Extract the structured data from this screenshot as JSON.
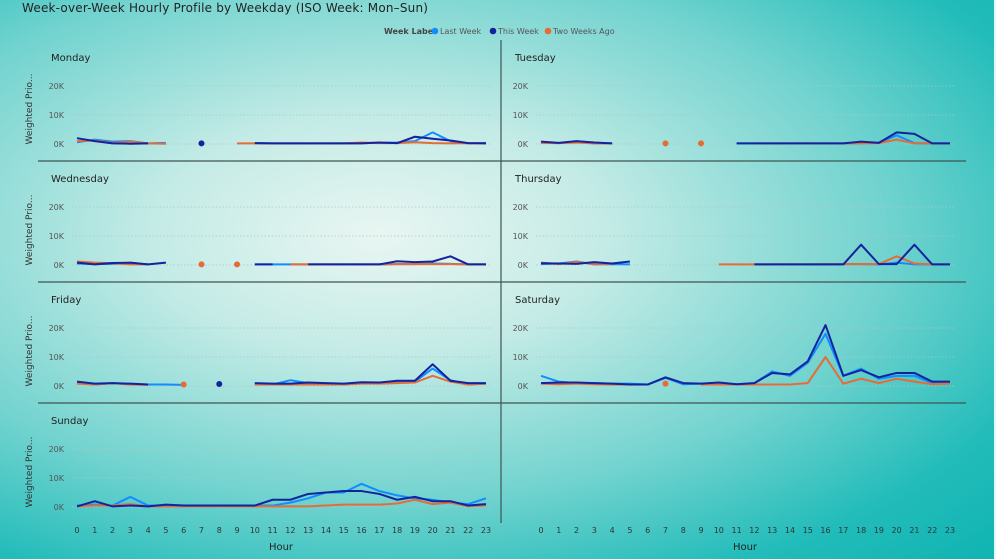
{
  "window": {
    "title": "Week-over-Week Hourly Profile by Weekday (ISO Week: Mon–Sun)"
  },
  "chart_data": {
    "type": "line",
    "title": "Week-over-Week Hourly Profile by Weekday (ISO Week: Mon–Sun)",
    "xlabel": "Hour",
    "ylabel": "Weighted Prio...",
    "ylim": [
      0,
      25000
    ],
    "y_ticks": [
      0,
      10000,
      20000
    ],
    "y_tick_labels": [
      "0K",
      "10K",
      "20K"
    ],
    "x_ticks": [
      0,
      1,
      2,
      3,
      4,
      5,
      6,
      7,
      8,
      9,
      10,
      11,
      12,
      13,
      14,
      15,
      16,
      17,
      18,
      19,
      20,
      21,
      22,
      23
    ],
    "x_tick_labels": [
      "0",
      "1",
      "2",
      "3",
      "4",
      "5",
      "6",
      "7",
      "8",
      "9",
      "10",
      "11",
      "12",
      "13",
      "14",
      "15",
      "16",
      "17",
      "18",
      "19",
      "20",
      "21",
      "22",
      "23"
    ],
    "legend": {
      "title": "Week Label",
      "position": "top-center",
      "entries": [
        {
          "name": "Last Week",
          "color": "#118dff"
        },
        {
          "name": "This Week",
          "color": "#12239e"
        },
        {
          "name": "Two Weeks Ago",
          "color": "#e66c37"
        }
      ]
    },
    "grid": true,
    "panels": [
      {
        "label": "Monday",
        "series": {
          "Last Week": [
            600,
            1500,
            800,
            1000,
            200,
            400,
            null,
            null,
            null,
            null,
            300,
            200,
            200,
            200,
            200,
            200,
            300,
            400,
            500,
            1000,
            4000,
            1000,
            200,
            400
          ],
          "This Week": [
            2000,
            1000,
            200,
            100,
            200,
            null,
            null,
            200,
            null,
            null,
            300,
            200,
            200,
            200,
            200,
            200,
            200,
            500,
            300,
            2500,
            1800,
            1200,
            300,
            200
          ],
          "Two Weeks Ago": [
            1000,
            1200,
            400,
            800,
            200,
            100,
            null,
            null,
            null,
            200,
            200,
            200,
            200,
            200,
            200,
            200,
            500,
            300,
            300,
            600,
            300,
            200,
            300,
            200
          ]
        }
      },
      {
        "label": "Tuesday",
        "series": {
          "Last Week": [
            500,
            300,
            800,
            200,
            200,
            null,
            null,
            null,
            null,
            null,
            null,
            200,
            200,
            200,
            200,
            200,
            200,
            200,
            300,
            500,
            3000,
            300,
            200,
            200
          ],
          "This Week": [
            800,
            400,
            1000,
            500,
            200,
            null,
            null,
            null,
            null,
            null,
            null,
            200,
            200,
            200,
            200,
            200,
            200,
            200,
            800,
            400,
            4000,
            3500,
            200,
            200
          ],
          "Two Weeks Ago": [
            400,
            300,
            500,
            200,
            200,
            null,
            null,
            200,
            null,
            200,
            null,
            null,
            200,
            200,
            200,
            200,
            200,
            200,
            200,
            300,
            1500,
            200,
            200,
            200
          ]
        }
      },
      {
        "label": "Wednesday",
        "series": {
          "Last Week": [
            500,
            300,
            400,
            600,
            200,
            null,
            null,
            null,
            null,
            null,
            200,
            200,
            200,
            200,
            200,
            200,
            200,
            200,
            300,
            300,
            500,
            400,
            200,
            200
          ],
          "This Week": [
            800,
            200,
            700,
            800,
            200,
            800,
            null,
            null,
            null,
            null,
            200,
            200,
            null,
            200,
            200,
            200,
            200,
            200,
            1300,
            1000,
            1200,
            3000,
            200,
            200
          ],
          "Two Weeks Ago": [
            1200,
            800,
            600,
            200,
            200,
            null,
            null,
            200,
            null,
            200,
            null,
            null,
            200,
            200,
            200,
            200,
            200,
            200,
            300,
            300,
            300,
            300,
            200,
            200
          ]
        }
      },
      {
        "label": "Thursday",
        "series": {
          "Last Week": [
            300,
            500,
            1200,
            200,
            300,
            200,
            null,
            null,
            null,
            null,
            null,
            null,
            200,
            200,
            200,
            200,
            200,
            300,
            300,
            200,
            800,
            200,
            200,
            200
          ],
          "This Week": [
            600,
            500,
            400,
            1000,
            500,
            1200,
            null,
            null,
            null,
            null,
            null,
            null,
            200,
            200,
            200,
            200,
            200,
            200,
            7000,
            300,
            300,
            7000,
            200,
            200
          ],
          "Two Weeks Ago": [
            800,
            300,
            1100,
            300,
            400,
            null,
            null,
            null,
            null,
            null,
            200,
            200,
            200,
            200,
            200,
            200,
            300,
            300,
            300,
            300,
            3000,
            500,
            200,
            200
          ]
        }
      },
      {
        "label": "Friday",
        "series": {
          "Last Week": [
            1000,
            500,
            1000,
            600,
            500,
            500,
            400,
            null,
            null,
            null,
            700,
            500,
            2000,
            1000,
            800,
            500,
            1000,
            1000,
            1500,
            1500,
            6000,
            2000,
            500,
            800
          ],
          "This Week": [
            1500,
            800,
            1000,
            800,
            500,
            null,
            null,
            null,
            700,
            null,
            1000,
            800,
            800,
            1200,
            1000,
            800,
            1300,
            1200,
            1800,
            1800,
            7500,
            1800,
            1000,
            1000
          ],
          "Two Weeks Ago": [
            800,
            500,
            1000,
            500,
            400,
            null,
            500,
            null,
            null,
            null,
            500,
            500,
            500,
            500,
            500,
            500,
            800,
            800,
            1000,
            1200,
            3500,
            1500,
            500,
            800
          ]
        }
      },
      {
        "label": "Saturday",
        "series": {
          "Last Week": [
            3500,
            1500,
            1000,
            1000,
            800,
            800,
            500,
            2800,
            600,
            800,
            800,
            600,
            1000,
            5000,
            3500,
            8000,
            18000,
            3500,
            6000,
            2500,
            3500,
            3500,
            1000,
            1200
          ],
          "This Week": [
            1000,
            1200,
            1200,
            1000,
            800,
            500,
            500,
            3000,
            1000,
            800,
            1200,
            600,
            1000,
            4500,
            4000,
            8500,
            21000,
            3500,
            5500,
            3000,
            4500,
            4500,
            1500,
            1500
          ],
          "Two Weeks Ago": [
            800,
            600,
            800,
            600,
            500,
            500,
            null,
            800,
            null,
            500,
            500,
            500,
            500,
            500,
            500,
            1000,
            10000,
            800,
            2500,
            1000,
            2500,
            1500,
            600,
            800
          ]
        }
      },
      {
        "label": "Sunday",
        "series": {
          "Last Week": [
            500,
            800,
            500,
            3500,
            500,
            500,
            500,
            500,
            500,
            500,
            500,
            500,
            1500,
            3000,
            5000,
            5000,
            8000,
            5500,
            4000,
            3000,
            2500,
            1500,
            1000,
            3000
          ],
          "This Week": [
            200,
            2000,
            200,
            500,
            200,
            800,
            500,
            500,
            500,
            500,
            500,
            2500,
            2500,
            4500,
            5000,
            5500,
            5500,
            4500,
            2500,
            3500,
            2000,
            2000,
            500,
            1000
          ],
          "Two Weeks Ago": [
            200,
            500,
            500,
            1000,
            200,
            200,
            200,
            200,
            200,
            200,
            200,
            200,
            200,
            200,
            500,
            800,
            800,
            800,
            1200,
            2500,
            1000,
            1500,
            300,
            500
          ]
        }
      }
    ]
  }
}
